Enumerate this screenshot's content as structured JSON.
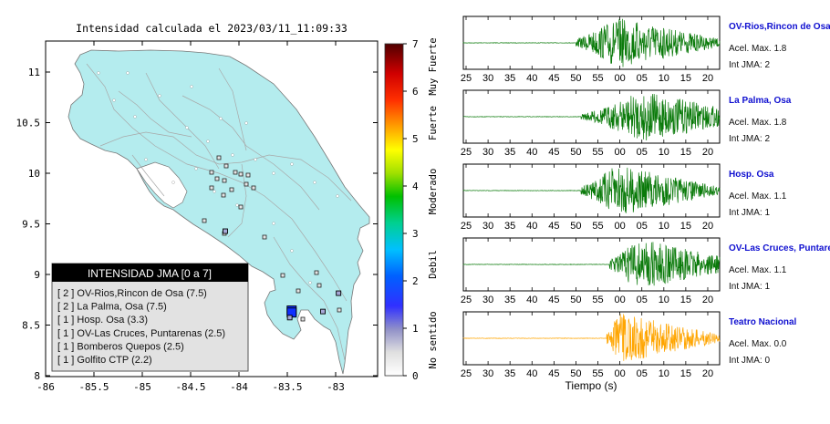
{
  "map": {
    "title": "Intensidad calculada el 2023/03/11_11:09:33",
    "x_ticks": [
      "-86",
      "-85.5",
      "-85",
      "-84.5",
      "-84",
      "-83.5",
      "-83"
    ],
    "y_ticks": [
      "8",
      "8.5",
      "9",
      "9.5",
      "10",
      "10.5",
      "11"
    ],
    "legend": {
      "header": "INTENSIDAD JMA [0 a 7]",
      "entries": [
        "[ 2 ]  OV-Rios,Rincon de Osa (7.5)",
        "[ 2 ]  La Palma, Osa (7.5)",
        "[ 1 ]  Hosp. Osa (3.3)",
        "[ 1 ]  OV-Las Cruces, Puntarenas (2.5)",
        "[ 1 ]  Bomberos Quepos (2.5)",
        "[ 1 ]  Golfito CTP (2.2)"
      ]
    },
    "colors": {
      "land": "#b4ecee",
      "sea": "#ffffff",
      "roads": "#a8a8a8"
    }
  },
  "colorbar": {
    "ticks": [
      "0",
      "1",
      "2",
      "3",
      "4",
      "5",
      "6",
      "7"
    ],
    "categories": [
      "No sentido",
      "Debil",
      "Moderado",
      "Fuerte",
      "Muy Fuerte"
    ]
  },
  "waveforms": {
    "x_ticks": [
      "25",
      "30",
      "35",
      "40",
      "45",
      "50",
      "55",
      "00",
      "05",
      "10",
      "15",
      "20"
    ],
    "xlabel": "Tiempo (s)",
    "stations": [
      {
        "name": "OV-Rios,Rincon de Osa",
        "acel": "Acel. Max. 1.8",
        "int": "Int JMA: 2",
        "color": "#0a7a0a",
        "onset": 0.44,
        "peak": 0.62
      },
      {
        "name": "La Palma, Osa",
        "acel": "Acel. Max. 1.8",
        "int": "Int JMA: 2",
        "color": "#0a7a0a",
        "onset": 0.46,
        "peak": 0.72
      },
      {
        "name": "Hosp. Osa",
        "acel": "Acel. Max. 1.1",
        "int": "Int JMA: 1",
        "color": "#0a7a0a",
        "onset": 0.46,
        "peak": 0.62
      },
      {
        "name": "OV-Las Cruces, Puntarenas",
        "acel": "Acel. Max. 1.1",
        "int": "Int JMA: 1",
        "color": "#0a7a0a",
        "onset": 0.57,
        "peak": 0.7
      },
      {
        "name": "Teatro Nacional",
        "acel": "Acel. Max. 0.0",
        "int": "Int JMA: 0",
        "color": "#ffa500",
        "onset": 0.56,
        "peak": 0.62
      }
    ]
  },
  "chart_data": [
    {
      "type": "scatter",
      "title": "Intensidad calculada el 2023/03/11_11:09:33",
      "xlim": [
        -86,
        -82.6
      ],
      "ylim": [
        8,
        11.3
      ],
      "stations": [
        {
          "name": "OV-Rios,Rincon de Osa",
          "lon": -83.48,
          "lat": 8.65,
          "intensity": 2
        },
        {
          "name": "La Palma, Osa",
          "lon": -83.48,
          "lat": 8.63,
          "intensity": 2
        },
        {
          "name": "Hosp. Osa",
          "lon": -83.5,
          "lat": 8.58,
          "intensity": 1
        },
        {
          "name": "OV-Las Cruces, Puntarenas",
          "lon": -83.0,
          "lat": 8.82,
          "intensity": 1
        },
        {
          "name": "Bomberos Quepos",
          "lon": -84.16,
          "lat": 9.43,
          "intensity": 1
        },
        {
          "name": "Golfito CTP",
          "lon": -83.16,
          "lat": 8.64,
          "intensity": 1
        }
      ]
    },
    {
      "type": "line",
      "xlabel": "Tiempo (s)",
      "x_ticks": [
        "25",
        "30",
        "35",
        "40",
        "45",
        "50",
        "55",
        "00",
        "05",
        "10",
        "15",
        "20"
      ],
      "series": [
        {
          "name": "OV-Rios,Rincon de Osa",
          "acel_max": 1.8,
          "int_jma": 2
        },
        {
          "name": "La Palma, Osa",
          "acel_max": 1.8,
          "int_jma": 2
        },
        {
          "name": "Hosp. Osa",
          "acel_max": 1.1,
          "int_jma": 1
        },
        {
          "name": "OV-Las Cruces, Puntarenas",
          "acel_max": 1.1,
          "int_jma": 1
        },
        {
          "name": "Teatro Nacional",
          "acel_max": 0.0,
          "int_jma": 0
        }
      ]
    }
  ]
}
